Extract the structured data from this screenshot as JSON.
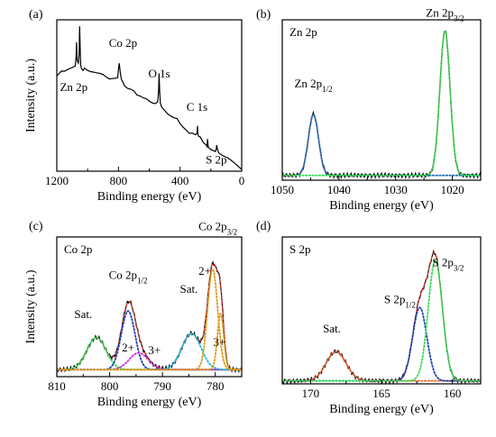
{
  "chart_data": [
    {
      "panel_label": "(a)",
      "type": "line",
      "xlabel": "Binding energy (eV)",
      "ylabel": "Intensity (a.u.)",
      "xlim": [
        1200,
        0
      ],
      "ylim": [
        0,
        1
      ],
      "x_reversed": true,
      "x_ticks": [
        1200,
        800,
        400,
        0
      ],
      "y_ticks_shown": false,
      "grid": false,
      "legend": "none",
      "annotations": [
        {
          "text": "Zn 2p",
          "x": 1090,
          "y": 0.53
        },
        {
          "text": "Co 2p",
          "x": 770,
          "y": 0.82
        },
        {
          "text": "O 1s",
          "x": 535,
          "y": 0.62
        },
        {
          "text": "C 1s",
          "x": 290,
          "y": 0.4
        },
        {
          "text": "S 2p",
          "x": 165,
          "y": 0.05
        }
      ],
      "series": [
        {
          "color": "#000000",
          "x": [
            1200,
            1170,
            1150,
            1120,
            1100,
            1080,
            1075,
            1072,
            1068,
            1060,
            1055,
            1052,
            1048,
            1045,
            1040,
            1030,
            1020,
            1000,
            980,
            960,
            940,
            920,
            900,
            880,
            860,
            840,
            820,
            805,
            800,
            795,
            790,
            785,
            780,
            770,
            760,
            740,
            720,
            700,
            680,
            660,
            640,
            620,
            600,
            580,
            560,
            545,
            540,
            536,
            532,
            528,
            520,
            500,
            480,
            460,
            440,
            420,
            400,
            380,
            360,
            340,
            320,
            300,
            290,
            287,
            284,
            280,
            270,
            250,
            230,
            225,
            222,
            218,
            210,
            190,
            170,
            165,
            162,
            158,
            150,
            120,
            90,
            60,
            30,
            0
          ],
          "y": [
            0.63,
            0.65,
            0.66,
            0.67,
            0.68,
            0.69,
            0.75,
            0.85,
            0.74,
            0.72,
            0.78,
            0.96,
            0.8,
            0.7,
            0.68,
            0.66,
            0.67,
            0.66,
            0.65,
            0.65,
            0.64,
            0.64,
            0.63,
            0.63,
            0.62,
            0.62,
            0.62,
            0.63,
            0.68,
            0.72,
            0.66,
            0.62,
            0.6,
            0.58,
            0.56,
            0.54,
            0.53,
            0.52,
            0.51,
            0.5,
            0.49,
            0.48,
            0.47,
            0.46,
            0.45,
            0.45,
            0.52,
            0.64,
            0.52,
            0.45,
            0.42,
            0.4,
            0.38,
            0.37,
            0.36,
            0.35,
            0.32,
            0.3,
            0.28,
            0.26,
            0.25,
            0.24,
            0.24,
            0.3,
            0.24,
            0.23,
            0.22,
            0.2,
            0.18,
            0.17,
            0.22,
            0.17,
            0.16,
            0.15,
            0.14,
            0.14,
            0.17,
            0.14,
            0.12,
            0.1,
            0.08,
            0.06,
            0.05,
            0.02
          ]
        }
      ]
    },
    {
      "panel_label": "(b)",
      "type": "line",
      "xlabel": "Binding energy (eV)",
      "ylabel": "",
      "xlim": [
        1050,
        1015
      ],
      "ylim": [
        0,
        1
      ],
      "x_reversed": true,
      "x_ticks": [
        1050,
        1040,
        1030,
        1020
      ],
      "inset_title": "Zn 2p",
      "peak_labels": [
        {
          "base": "Zn 2p",
          "sub": "1/2",
          "color": "#1f6fb4",
          "x": 1044.5,
          "y": 0.58
        },
        {
          "base": "Zn 2p",
          "sub": "3/2",
          "color": "#33dd55",
          "x": 1021.3,
          "y": 1.02
        }
      ],
      "series": [
        {
          "role": "raw",
          "color": "#000000",
          "style": "solid",
          "center": [
            1044.5,
            1021.3
          ],
          "height": [
            0.38,
            0.9
          ],
          "width": [
            0.9,
            0.9
          ],
          "baseline": 0.03
        },
        {
          "role": "fit",
          "color": "#e03030",
          "style": "dashed",
          "center": [
            1044.5,
            1021.3
          ],
          "height": [
            0.38,
            0.9
          ],
          "width": [
            0.9,
            0.9
          ],
          "baseline": 0.03
        },
        {
          "role": "component",
          "color": "#1f6fb4",
          "style": "dotted",
          "center": [
            1044.5
          ],
          "height": [
            0.38
          ],
          "width": [
            0.9
          ],
          "baseline": 0.03
        },
        {
          "role": "component",
          "color": "#33dd55",
          "style": "dotted",
          "center": [
            1021.3
          ],
          "height": [
            0.9
          ],
          "width": [
            0.9
          ],
          "baseline": 0.03
        }
      ]
    },
    {
      "panel_label": "(c)",
      "type": "line",
      "xlabel": "Binding energy (eV)",
      "ylabel": "Intensity (a.u.)",
      "xlim": [
        810,
        775
      ],
      "ylim": [
        0,
        1
      ],
      "x_reversed": true,
      "x_ticks": [
        810,
        800,
        790,
        780
      ],
      "inset_title": "Co 2p",
      "peak_labels": [
        {
          "base": "Co 2p",
          "sub": "1/2",
          "color": "#000000",
          "x": 796.5,
          "y": 0.7
        },
        {
          "base": "Co 2p",
          "sub": "3/2",
          "color": "#000000",
          "x": 779.5,
          "y": 1.05
        },
        {
          "base": "Sat.",
          "sub": "",
          "color": "#33dd55",
          "x": 805,
          "y": 0.42
        },
        {
          "base": "2+",
          "sub": "",
          "color": "#1f3fb4",
          "x": 796.5,
          "y": 0.18
        },
        {
          "base": "3+",
          "sub": "",
          "color": "#cc33cc",
          "x": 791.5,
          "y": 0.16
        },
        {
          "base": "Sat.",
          "sub": "",
          "color": "#22bbdd",
          "x": 785,
          "y": 0.6
        },
        {
          "base": "2+",
          "sub": "",
          "color": "#dd9911",
          "x": 782,
          "y": 0.73
        },
        {
          "base": "3+",
          "sub": "",
          "color": "#dd9911",
          "x": 779.2,
          "y": 0.22
        }
      ],
      "series": [
        {
          "role": "raw",
          "color": "#000000",
          "style": "solid",
          "center": [
            802.5,
            796.5,
            794.5,
            784.5,
            780.5,
            779.0
          ],
          "height": [
            0.23,
            0.42,
            0.12,
            0.26,
            0.72,
            0.4
          ],
          "width": [
            1.8,
            1.3,
            1.8,
            1.8,
            0.95,
            0.6
          ],
          "baseline": 0.05
        },
        {
          "role": "fit",
          "color": "#e03030",
          "style": "dashed",
          "center": [
            802.5,
            796.5,
            794.5,
            784.5,
            780.5,
            779.0
          ],
          "height": [
            0.23,
            0.42,
            0.12,
            0.26,
            0.72,
            0.4
          ],
          "width": [
            1.8,
            1.3,
            1.8,
            1.8,
            0.95,
            0.6
          ],
          "baseline": 0.05
        },
        {
          "role": "component",
          "color": "#33dd55",
          "style": "dotted",
          "center": [
            802.5
          ],
          "height": [
            0.23
          ],
          "width": [
            1.8
          ],
          "baseline": 0.05
        },
        {
          "role": "component",
          "color": "#1f3fb4",
          "style": "dotted",
          "center": [
            796.5
          ],
          "height": [
            0.42
          ],
          "width": [
            1.3
          ],
          "baseline": 0.05
        },
        {
          "role": "component",
          "color": "#cc33cc",
          "style": "dotted",
          "center": [
            794.5
          ],
          "height": [
            0.12
          ],
          "width": [
            1.8
          ],
          "baseline": 0.05
        },
        {
          "role": "component",
          "color": "#22bbdd",
          "style": "dotted",
          "center": [
            784.5
          ],
          "height": [
            0.26
          ],
          "width": [
            1.8
          ],
          "baseline": 0.05
        },
        {
          "role": "component",
          "color": "#dd9911",
          "style": "dotted",
          "center": [
            780.5
          ],
          "height": [
            0.72
          ],
          "width": [
            0.95
          ],
          "baseline": 0.05
        },
        {
          "role": "component",
          "color": "#dd9911",
          "style": "dotted",
          "center": [
            779.0
          ],
          "height": [
            0.4
          ],
          "width": [
            0.6
          ],
          "baseline": 0.05
        }
      ]
    },
    {
      "panel_label": "(d)",
      "type": "line",
      "xlabel": "Binding energy (eV)",
      "ylabel": "",
      "xlim": [
        172,
        158
      ],
      "ylim": [
        0,
        1
      ],
      "x_reversed": true,
      "x_ticks": [
        170,
        165,
        160
      ],
      "inset_title": "S 2p",
      "peak_labels": [
        {
          "base": "S 2p",
          "sub": "1/2",
          "color": "#1f3fb4",
          "x": 163.7,
          "y": 0.55
        },
        {
          "base": "S 2p",
          "sub": "3/2",
          "color": "#33dd55",
          "x": 160.3,
          "y": 0.8
        },
        {
          "base": "Sat.",
          "sub": "",
          "color": "#dd6633",
          "x": 168.5,
          "y": 0.35
        }
      ],
      "series": [
        {
          "role": "raw",
          "color": "#000000",
          "style": "solid",
          "center": [
            168.2,
            162.3,
            161.2
          ],
          "height": [
            0.2,
            0.5,
            0.82
          ],
          "width": [
            0.7,
            0.5,
            0.5
          ],
          "baseline": 0.02
        },
        {
          "role": "fit",
          "color": "#e03030",
          "style": "dashed",
          "center": [
            168.2,
            162.3,
            161.2
          ],
          "height": [
            0.2,
            0.5,
            0.82
          ],
          "width": [
            0.7,
            0.5,
            0.5
          ],
          "baseline": 0.02
        },
        {
          "role": "component",
          "color": "#dd6633",
          "style": "dotted",
          "center": [
            168.2
          ],
          "height": [
            0.2
          ],
          "width": [
            0.7
          ],
          "baseline": 0.02
        },
        {
          "role": "component",
          "color": "#1f3fb4",
          "style": "dotted",
          "center": [
            162.3
          ],
          "height": [
            0.5
          ],
          "width": [
            0.5
          ],
          "baseline": 0.02
        },
        {
          "role": "component",
          "color": "#33dd55",
          "style": "dotted",
          "center": [
            161.2
          ],
          "height": [
            0.82
          ],
          "width": [
            0.5
          ],
          "baseline": 0.02
        }
      ]
    }
  ]
}
